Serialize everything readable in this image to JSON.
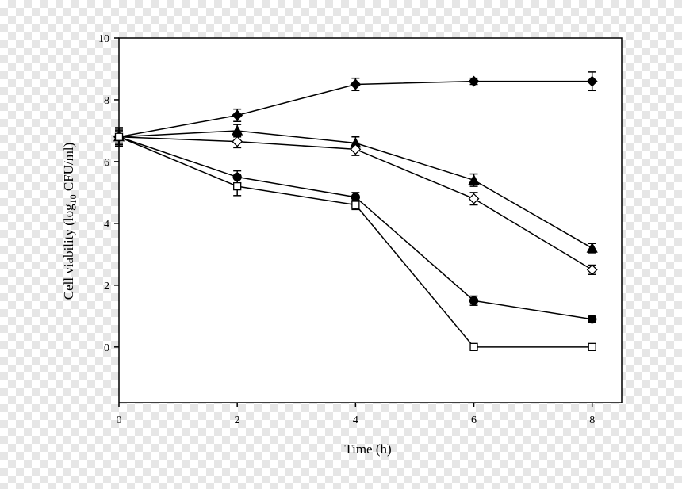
{
  "chart_data": {
    "type": "line",
    "xlabel": "Time (h)",
    "ylabel_prefix": "Cell viability (log",
    "ylabel_sub": "10",
    "ylabel_suffix": " CFU/ml)",
    "xlim": [
      0,
      8.5
    ],
    "ylim": [
      -1.8,
      10
    ],
    "xticks": [
      0,
      2,
      4,
      6,
      8
    ],
    "yticks": [
      0,
      2,
      4,
      6,
      8,
      10
    ],
    "grid": false,
    "legend": "none",
    "x": [
      0,
      2,
      4,
      6,
      8
    ],
    "series": [
      {
        "marker": "diamond-filled",
        "values": [
          6.8,
          7.5,
          8.5,
          8.6,
          8.6
        ],
        "errors": [
          0.3,
          0.2,
          0.2,
          0.1,
          0.3
        ]
      },
      {
        "marker": "triangle-filled",
        "values": [
          6.8,
          7.0,
          6.6,
          5.4,
          3.2
        ],
        "errors": [
          0.3,
          0.2,
          0.2,
          0.2,
          0.15
        ]
      },
      {
        "marker": "diamond-open",
        "values": [
          6.8,
          6.65,
          6.4,
          4.8,
          2.5
        ],
        "errors": [
          0.25,
          0.2,
          0.2,
          0.2,
          0.15
        ]
      },
      {
        "marker": "circle-filled",
        "values": [
          6.8,
          5.5,
          4.85,
          1.5,
          0.9
        ],
        "errors": [
          0.2,
          0.2,
          0.15,
          0.15,
          0.1
        ]
      },
      {
        "marker": "square-open",
        "values": [
          6.8,
          5.2,
          4.6,
          0.0,
          0.0
        ],
        "errors": [
          0.2,
          0.3,
          0.15,
          0.0,
          0.0
        ]
      }
    ]
  }
}
